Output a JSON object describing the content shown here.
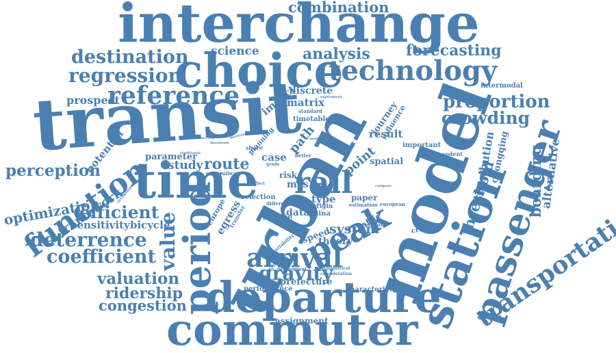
{
  "cloud_color": "#4a7fb1",
  "background_color": "#ffffff",
  "words": {
    "transit": "transit",
    "urban": "urban",
    "model": "model",
    "interchange": "interchange",
    "choice": "choice",
    "commuter": "commuter",
    "departure": "departure",
    "time": "time",
    "station": "station",
    "passenger": "passenger",
    "period": "period",
    "peak": "peak",
    "rail": "rail",
    "function": "function",
    "technology": "technology",
    "reference": "reference",
    "arrival": "arrival",
    "gravity": "gravity",
    "transportation": "transportation",
    "regression": "regression",
    "destination": "destination",
    "combination": "combination",
    "analysis": "analysis",
    "forecasting": "forecasting",
    "science": "science",
    "proportion": "proportion",
    "crowding": "crowding",
    "threshold": "threshold",
    "distribution": "distribution",
    "boarding": "boarding",
    "alternative": "alternative",
    "perception": "perception",
    "optimization": "optimization",
    "framework": "framework",
    "efficient": "efficient",
    "sensitivity": "sensitivity",
    "bicycle": "bicycle",
    "deterrence": "deterrence",
    "coefficient": "coefficient",
    "valuation": "valuation",
    "ridership": "ridership",
    "congestion": "congestion",
    "value": "value",
    "route": "route",
    "study": "study",
    "parameter": "parameter",
    "prospect": "prospect",
    "potential": "potential",
    "impact": "impact",
    "discrete": "discrete",
    "matrix": "matrix",
    "journey": "journey",
    "influence": "influence",
    "result": "result",
    "point": "point",
    "spatial": "spatial",
    "path": "path",
    "system": "system",
    "theory": "theory",
    "type": "type",
    "mas": "mas",
    "paper": "paper",
    "case": "case",
    "selection": "selection",
    "traffic": "traffic",
    "speed": "speed",
    "data": "data",
    "service": "service",
    "egress": "egress",
    "europe": "europe",
    "prefecture": "prefecture",
    "assignment": "assignment",
    "characteristic": "characteristic",
    "performance": "performance",
    "intermodal": "intermodal",
    "important": "important",
    "independent": "independent",
    "chongqing": "chongqing",
    "timetable": "timetable",
    "planning": "planning",
    "standard": "standard",
    "risk": "risk",
    "origin": "origin",
    "china": "china",
    "estimation": "estimation",
    "european": "european",
    "criterion": "criterion",
    "response": "response",
    "different": "different",
    "variability": "variability",
    "development": "development",
    "asymmetrical": "asymmetrical",
    "consideration": "consideration",
    "identifying": "identifying",
    "railway": "railway",
    "share": "share",
    "better": "better",
    "grade": "grade",
    "transfer": "transfer",
    "traditional": "traditional",
    "circumstances": "circumstances",
    "connection": "connection",
    "maximum": "maximum",
    "deviation": "deviation",
    "necessary": "necessary",
    "effect": "effect",
    "compare": "compare",
    "experiment": "experiment",
    "school": "school",
    "simplified": "simplified",
    "method": "method"
  }
}
